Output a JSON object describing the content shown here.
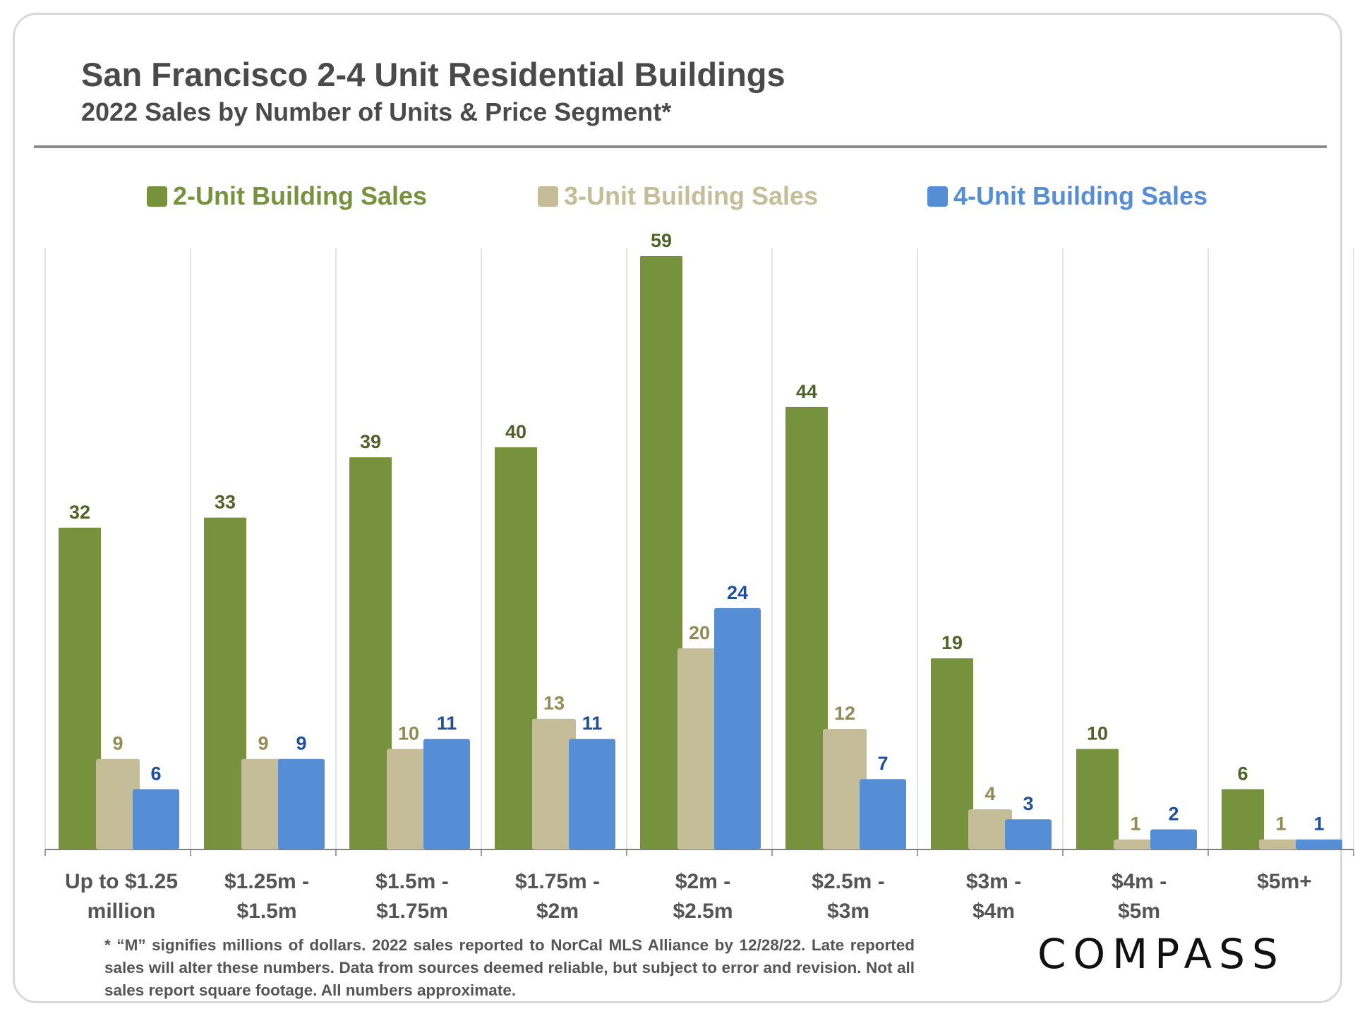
{
  "header": {
    "title": "San Francisco 2-4 Unit Residential Buildings",
    "subtitle": "2022 Sales by Number of Units & Price Segment*"
  },
  "footnote": "* “M” signifies millions of dollars. 2022 sales reported to NorCal MLS Alliance by 12/28/22. Late reported sales will alter these numbers. Data from sources deemed reliable, but subject to error and revision. Not all sales report square footage. All numbers  approximate.",
  "brand": {
    "logo_text": "COMPASS"
  },
  "colors": {
    "two_unit": "#76923c",
    "three_unit": "#c4bd97",
    "four_unit": "#558ed5",
    "two_unit_label": "#4f6228",
    "three_unit_label": "#948a54",
    "four_unit_label": "#1f4e9c",
    "text": "#4a4a4a"
  },
  "chart_data": {
    "type": "bar",
    "title": "San Francisco 2-4 Unit Residential Buildings",
    "subtitle": "2022 Sales by Number of Units & Price Segment*",
    "xlabel": "",
    "ylabel": "",
    "ylim": [
      0,
      60
    ],
    "grid": "vertical category separators",
    "legend_position": "top",
    "categories": [
      [
        "Up to $1.25",
        "million"
      ],
      [
        "$1.25m -",
        "$1.5m"
      ],
      [
        "$1.5m -",
        "$1.75m"
      ],
      [
        "$1.75m -",
        "$2m"
      ],
      [
        "$2m -",
        "$2.5m"
      ],
      [
        "$2.5m -",
        "$3m"
      ],
      [
        "$3m -",
        "$4m"
      ],
      [
        "$4m -",
        "$5m"
      ],
      [
        "$5m+"
      ]
    ],
    "series": [
      {
        "name": "2-Unit Building Sales",
        "key": "two_unit",
        "values": [
          32,
          33,
          39,
          40,
          59,
          44,
          19,
          10,
          6
        ]
      },
      {
        "name": "3-Unit Building Sales",
        "key": "three_unit",
        "values": [
          9,
          9,
          10,
          13,
          20,
          12,
          4,
          1,
          1
        ]
      },
      {
        "name": "4-Unit Building Sales",
        "key": "four_unit",
        "values": [
          6,
          9,
          11,
          11,
          24,
          7,
          3,
          2,
          1
        ]
      }
    ]
  }
}
